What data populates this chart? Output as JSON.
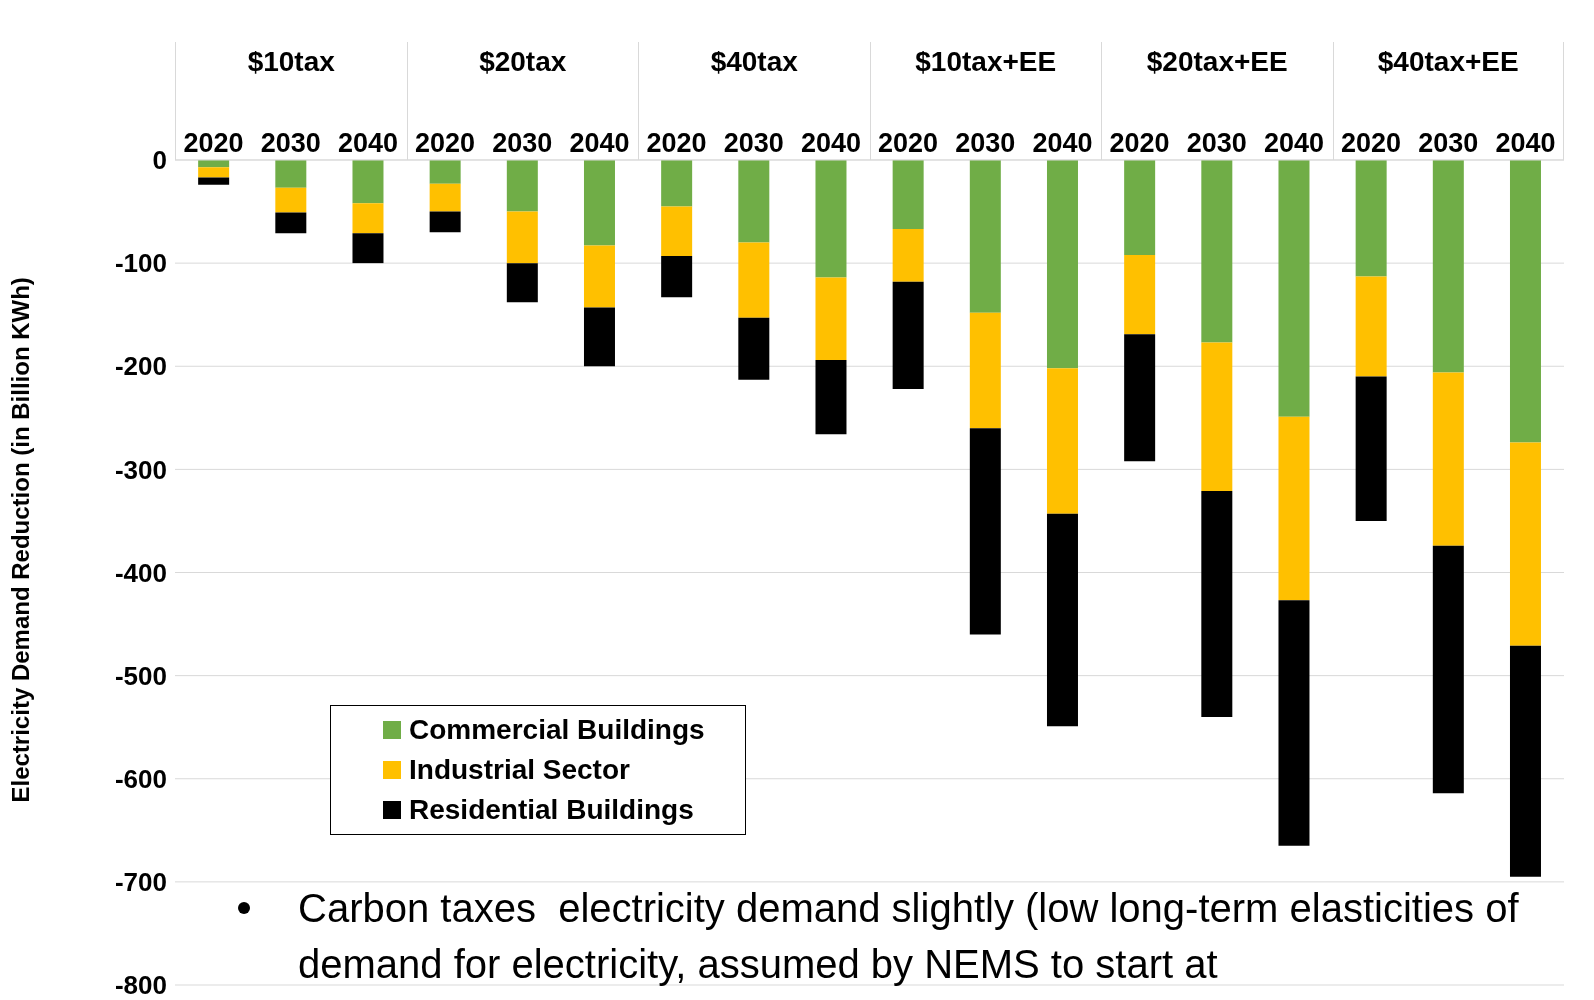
{
  "chart_data": {
    "type": "bar",
    "stacked": true,
    "categories": [
      "2020",
      "2030",
      "2040",
      "2020",
      "2030",
      "2040",
      "2020",
      "2030",
      "2040",
      "2020",
      "2030",
      "2040",
      "2020",
      "2030",
      "2040",
      "2020",
      "2030",
      "2040"
    ],
    "series": [
      {
        "name": "Commercial Buildings",
        "color": "#70ad47",
        "values": [
          -7,
          -27,
          -42,
          -23,
          -50,
          -83,
          -45,
          -80,
          -114,
          -67,
          -148,
          -202,
          -92,
          -177,
          -249,
          -113,
          -206,
          -274
        ]
      },
      {
        "name": "Industrial Sector",
        "color": "#ffc000",
        "values": [
          -10,
          -24,
          -29,
          -27,
          -50,
          -60,
          -48,
          -73,
          -80,
          -51,
          -112,
          -141,
          -77,
          -144,
          -178,
          -97,
          -168,
          -197
        ]
      },
      {
        "name": "Residential Buildings",
        "color": "#000000",
        "values": [
          -7,
          -20,
          -29,
          -20,
          -38,
          -57,
          -40,
          -60,
          -72,
          -104,
          -200,
          -206,
          -123,
          -219,
          -238,
          -140,
          -240,
          -224
        ]
      }
    ],
    "ylabel": "Electricity Demand Reduction (in Billion KWh)",
    "ylim": [
      -800,
      0
    ],
    "yticks": [
      -800,
      -700,
      -600,
      -500,
      -400,
      -300,
      -200,
      -100,
      0
    ],
    "grid": "y",
    "legend": "bottom left",
    "annotations": [
      "$10tax",
      "$20tax",
      "$40tax",
      "$10tax+EE",
      "$20tax+EE",
      "$40tax+EE",
      "Carbon taxes  electricity demand slightly (low long-term elasticities of demand for electricity, assumed by NEMS to start at"
    ]
  }
}
